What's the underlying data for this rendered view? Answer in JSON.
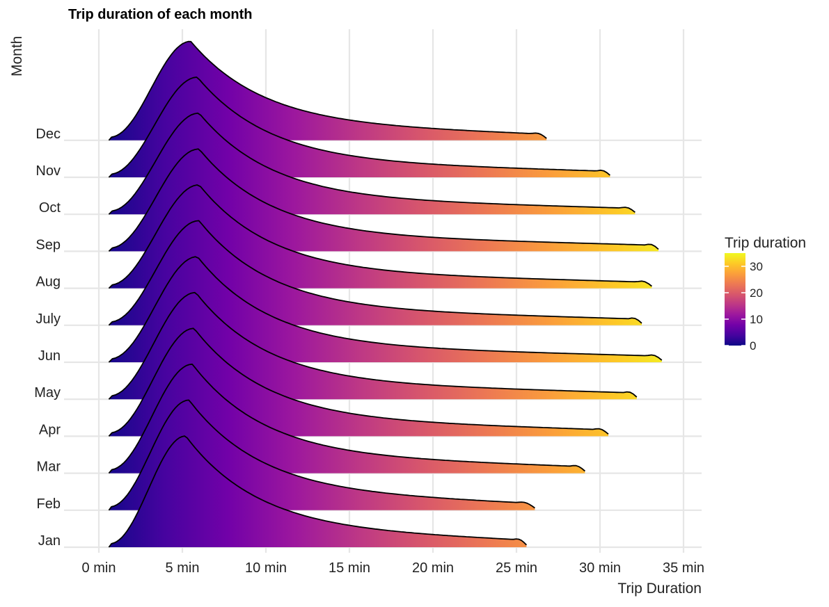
{
  "chart_data": {
    "type": "ridgeline",
    "title": "Trip duration of each month",
    "xlabel": "Trip Duration",
    "ylabel": "Month",
    "x_unit": "min",
    "xlim": [
      -1,
      36
    ],
    "x_ticks": [
      0,
      5,
      10,
      15,
      20,
      25,
      30,
      35
    ],
    "x_tick_labels": [
      "0 min",
      "5 min",
      "10 min",
      "15 min",
      "20 min",
      "25 min",
      "30 min",
      "35 min"
    ],
    "grid": true,
    "colorscale": "plasma",
    "color_range": [
      0,
      35
    ],
    "legend": {
      "title": "Trip duration",
      "placement": "right",
      "ticks": [
        0,
        10,
        20,
        30
      ],
      "tick_labels": [
        "0",
        "10",
        "20",
        "30"
      ]
    },
    "series": [
      {
        "name": "Jan",
        "min": 0.6,
        "max": 25.6,
        "peak": 5.2,
        "tail": 24.8
      },
      {
        "name": "Feb",
        "min": 0.6,
        "max": 26.1,
        "peak": 5.4,
        "tail": 25.0
      },
      {
        "name": "Mar",
        "min": 0.6,
        "max": 29.1,
        "peak": 5.6,
        "tail": 28.2
      },
      {
        "name": "Apr",
        "min": 0.6,
        "max": 30.5,
        "peak": 5.7,
        "tail": 29.6
      },
      {
        "name": "May",
        "min": 0.6,
        "max": 32.2,
        "peak": 5.8,
        "tail": 31.4
      },
      {
        "name": "Jun",
        "min": 0.6,
        "max": 33.7,
        "peak": 5.9,
        "tail": 32.8
      },
      {
        "name": "July",
        "min": 0.6,
        "max": 32.5,
        "peak": 6.0,
        "tail": 31.7
      },
      {
        "name": "Aug",
        "min": 0.6,
        "max": 33.1,
        "peak": 6.0,
        "tail": 32.2
      },
      {
        "name": "Sep",
        "min": 0.6,
        "max": 33.5,
        "peak": 6.0,
        "tail": 32.7
      },
      {
        "name": "Oct",
        "min": 0.6,
        "max": 32.1,
        "peak": 6.0,
        "tail": 31.2
      },
      {
        "name": "Nov",
        "min": 0.6,
        "max": 30.6,
        "peak": 5.9,
        "tail": 29.8
      },
      {
        "name": "Dec",
        "min": 0.6,
        "max": 26.8,
        "peak": 5.5,
        "tail": 25.9
      }
    ]
  }
}
